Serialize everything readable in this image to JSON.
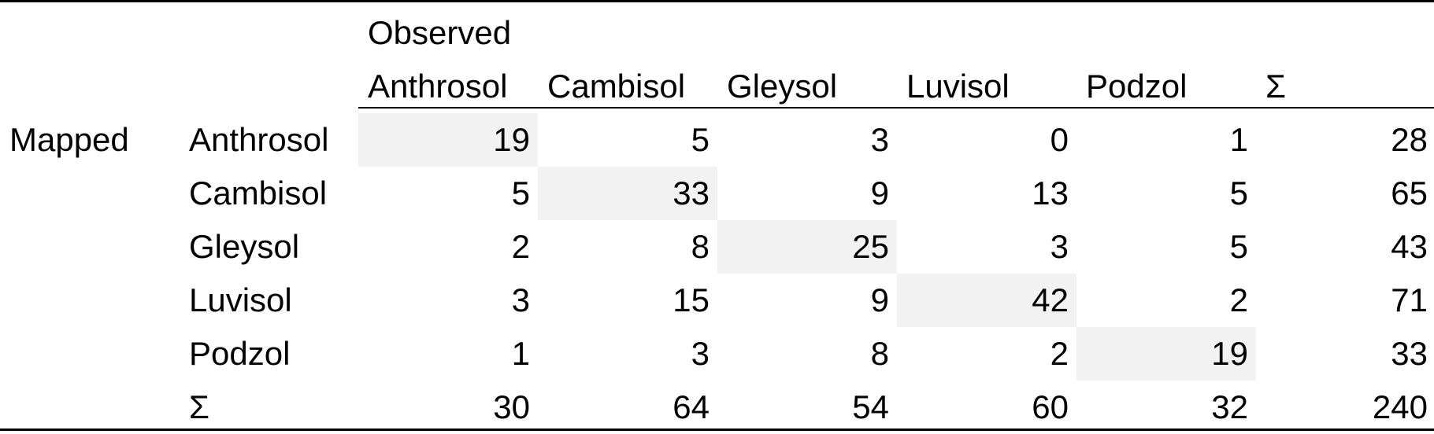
{
  "table": {
    "observed_label": "Observed",
    "mapped_label": "Mapped",
    "sum_symbol": "Σ",
    "columns": [
      "Anthrosol",
      "Cambisol",
      "Gleysol",
      "Luvisol",
      "Podzol",
      "Σ"
    ],
    "rows": [
      {
        "label": "Anthrosol",
        "values": [
          "19",
          "5",
          "3",
          "0",
          "1",
          "28"
        ]
      },
      {
        "label": "Cambisol",
        "values": [
          "5",
          "33",
          "9",
          "13",
          "5",
          "65"
        ]
      },
      {
        "label": "Gleysol",
        "values": [
          "2",
          "8",
          "25",
          "3",
          "5",
          "43"
        ]
      },
      {
        "label": "Luvisol",
        "values": [
          "3",
          "15",
          "9",
          "42",
          "2",
          "71"
        ]
      },
      {
        "label": "Podzol",
        "values": [
          "1",
          "3",
          "8",
          "2",
          "19",
          "33"
        ]
      },
      {
        "label": "Σ",
        "values": [
          "30",
          "64",
          "54",
          "60",
          "32",
          "240"
        ]
      }
    ],
    "diagonal_highlight_color": "#f2f2f2"
  }
}
